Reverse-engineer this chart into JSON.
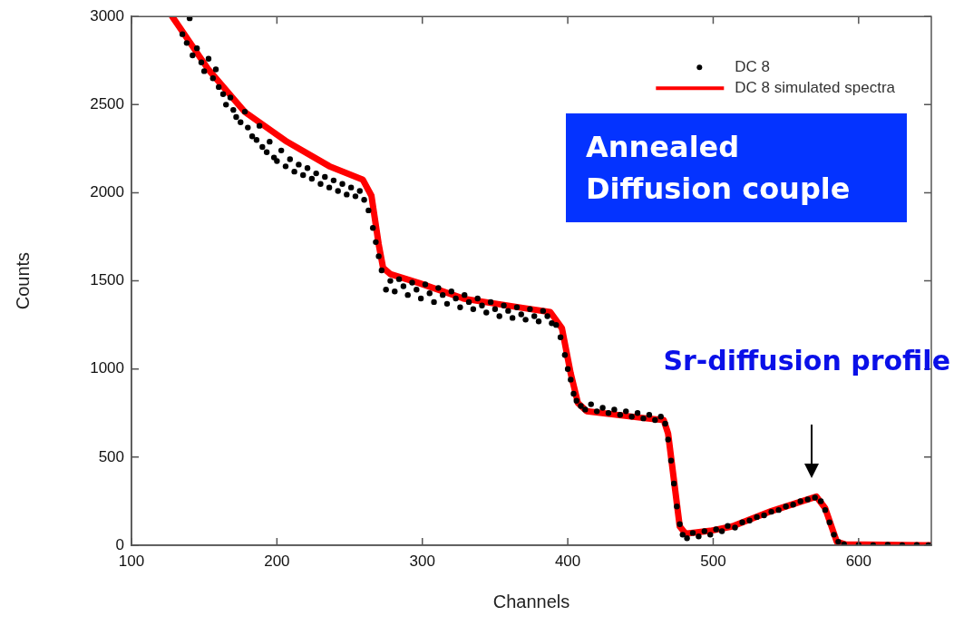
{
  "chart_data": {
    "type": "scatter",
    "xlabel": "Channels",
    "ylabel": "Counts",
    "xlim": [
      100,
      650
    ],
    "ylim": [
      0,
      3000
    ],
    "xticks": [
      100,
      200,
      300,
      400,
      500,
      600
    ],
    "yticks": [
      0,
      500,
      1000,
      1500,
      2000,
      2500,
      3000
    ],
    "grid": false,
    "legend": "top right",
    "marker": "circle",
    "annotations": [
      "Annealed\nDiffusion couple",
      "Sr-diffusion profile"
    ],
    "series": [
      {
        "name": "DC 8",
        "color": "#000000",
        "x": [
          140,
          135,
          138,
          142,
          145,
          148,
          150,
          153,
          156,
          158,
          160,
          163,
          165,
          168,
          170,
          172,
          175,
          178,
          180,
          183,
          186,
          188,
          190,
          193,
          195,
          198,
          200,
          203,
          206,
          209,
          212,
          215,
          218,
          221,
          224,
          227,
          230,
          233,
          236,
          239,
          242,
          245,
          248,
          251,
          254,
          257,
          260,
          263,
          266,
          268,
          270,
          272,
          275,
          278,
          281,
          284,
          287,
          290,
          293,
          296,
          299,
          302,
          305,
          308,
          311,
          314,
          317,
          320,
          323,
          326,
          329,
          332,
          335,
          338,
          341,
          344,
          347,
          350,
          353,
          356,
          359,
          362,
          365,
          368,
          371,
          374,
          377,
          380,
          383,
          386,
          389,
          392,
          395,
          398,
          400,
          402,
          404,
          406,
          409,
          412,
          416,
          420,
          424,
          428,
          432,
          436,
          440,
          444,
          448,
          452,
          456,
          460,
          464,
          467,
          469,
          471,
          473,
          475,
          477,
          479,
          482,
          486,
          490,
          494,
          498,
          502,
          506,
          510,
          515,
          520,
          525,
          530,
          535,
          540,
          545,
          550,
          555,
          560,
          565,
          570,
          574,
          577,
          580,
          583,
          586,
          590,
          600,
          610,
          620,
          630,
          640,
          648
        ],
        "values": [
          2990,
          2900,
          2850,
          2780,
          2820,
          2740,
          2690,
          2760,
          2650,
          2700,
          2600,
          2560,
          2500,
          2540,
          2470,
          2430,
          2400,
          2460,
          2370,
          2320,
          2300,
          2380,
          2260,
          2230,
          2290,
          2200,
          2180,
          2240,
          2150,
          2190,
          2120,
          2160,
          2100,
          2140,
          2080,
          2110,
          2050,
          2090,
          2030,
          2070,
          2010,
          2050,
          1990,
          2030,
          1980,
          2010,
          1960,
          1900,
          1800,
          1720,
          1640,
          1560,
          1450,
          1500,
          1440,
          1510,
          1470,
          1420,
          1490,
          1450,
          1400,
          1480,
          1430,
          1380,
          1460,
          1420,
          1370,
          1440,
          1400,
          1350,
          1420,
          1380,
          1340,
          1400,
          1360,
          1320,
          1380,
          1340,
          1300,
          1360,
          1330,
          1290,
          1350,
          1310,
          1280,
          1340,
          1300,
          1270,
          1330,
          1300,
          1260,
          1250,
          1180,
          1080,
          1000,
          940,
          860,
          820,
          790,
          770,
          800,
          760,
          780,
          750,
          770,
          740,
          760,
          730,
          750,
          720,
          740,
          710,
          730,
          690,
          600,
          480,
          350,
          220,
          120,
          60,
          40,
          70,
          50,
          80,
          60,
          90,
          80,
          110,
          100,
          130,
          140,
          160,
          170,
          190,
          200,
          220,
          230,
          250,
          260,
          270,
          250,
          200,
          130,
          60,
          20,
          5,
          2,
          0,
          3,
          0,
          2,
          0
        ]
      },
      {
        "name": "DC 8 simulated spectra",
        "type": "line",
        "color": "#ff0000",
        "marker": "none",
        "line_style": "solid",
        "x": [
          128,
          153,
          178,
          207,
          236,
          259,
          265,
          270,
          273,
          278,
          298,
          329,
          371,
          388,
          396,
          402,
          407,
          413,
          454,
          466,
          469,
          477,
          481,
          498,
          513,
          540,
          571,
          577,
          585,
          591,
          650
        ],
        "values": [
          3000,
          2698,
          2458,
          2289,
          2151,
          2075,
          1983,
          1707,
          1574,
          1538,
          1487,
          1398,
          1344,
          1323,
          1231,
          976,
          807,
          761,
          720,
          710,
          634,
          107,
          66,
          82,
          107,
          194,
          276,
          210,
          20,
          5,
          0
        ]
      }
    ]
  }
}
